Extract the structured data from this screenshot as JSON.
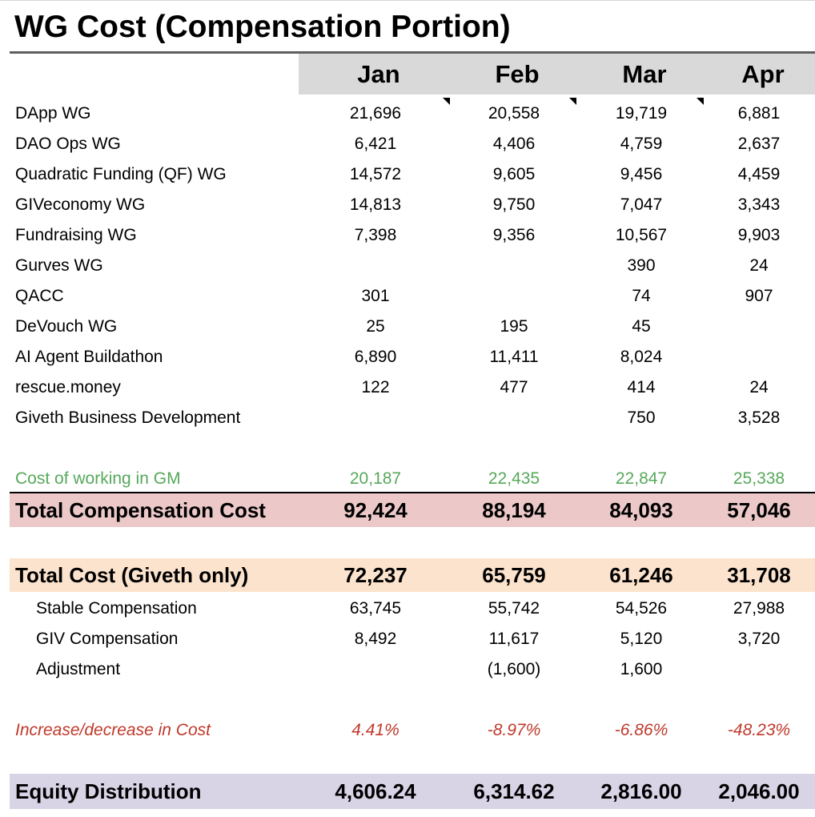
{
  "title": "WG Cost (Compensation Portion)",
  "columns": [
    "Jan",
    "Feb",
    "Mar",
    "Apr"
  ],
  "rows": [
    {
      "label": "DApp WG",
      "values": [
        "21,696",
        "20,558",
        "19,719",
        "6,881"
      ]
    },
    {
      "label": "DAO Ops WG",
      "values": [
        "6,421",
        "4,406",
        "4,759",
        "2,637"
      ]
    },
    {
      "label": "Quadratic Funding (QF) WG",
      "values": [
        "14,572",
        "9,605",
        "9,456",
        "4,459"
      ]
    },
    {
      "label": "GIVeconomy WG",
      "values": [
        "14,813",
        "9,750",
        "7,047",
        "3,343"
      ]
    },
    {
      "label": "Fundraising WG",
      "values": [
        "7,398",
        "9,356",
        "10,567",
        "9,903"
      ]
    },
    {
      "label": "Gurves WG",
      "values": [
        "",
        "",
        "390",
        "24"
      ]
    },
    {
      "label": "QACC",
      "values": [
        "301",
        "",
        "74",
        "907"
      ]
    },
    {
      "label": "DeVouch WG",
      "values": [
        "25",
        "195",
        "45",
        ""
      ]
    },
    {
      "label": "AI Agent Buildathon",
      "values": [
        "6,890",
        "11,411",
        "8,024",
        ""
      ]
    },
    {
      "label": "rescue.money",
      "values": [
        "122",
        "477",
        "414",
        "24"
      ]
    },
    {
      "label": "Giveth Business Development",
      "values": [
        "",
        "",
        "750",
        "3,528"
      ]
    }
  ],
  "cost_gm": {
    "label": "Cost of working in GM",
    "values": [
      "20,187",
      "22,435",
      "22,847",
      "25,338"
    ],
    "color": "#57a85a"
  },
  "total_comp": {
    "label": "Total Compensation Cost",
    "values": [
      "92,424",
      "88,194",
      "84,093",
      "57,046"
    ],
    "color": "#ecc8c8"
  },
  "total_giveth": {
    "label": "Total Cost (Giveth only)",
    "values": [
      "72,237",
      "65,759",
      "61,246",
      "31,708"
    ],
    "color": "#fbe3cd"
  },
  "sub_rows": [
    {
      "label": "Stable Compensation",
      "values": [
        "63,745",
        "55,742",
        "54,526",
        "27,988"
      ]
    },
    {
      "label": "GIV Compensation",
      "values": [
        "8,492",
        "11,617",
        "5,120",
        "3,720"
      ]
    },
    {
      "label": "Adjustment",
      "values": [
        "",
        "(1,600)",
        "1,600",
        ""
      ]
    }
  ],
  "change": {
    "label": "Increase/decrease in Cost",
    "values": [
      "4.41%",
      "-8.97%",
      "-6.86%",
      "-48.23%"
    ],
    "color": "#c0392b"
  },
  "equity": {
    "label": "Equity Distribution",
    "values": [
      "4,606.24",
      "6,314.62",
      "2,816.00",
      "2,046.00"
    ],
    "color": "#d9d3e6"
  }
}
